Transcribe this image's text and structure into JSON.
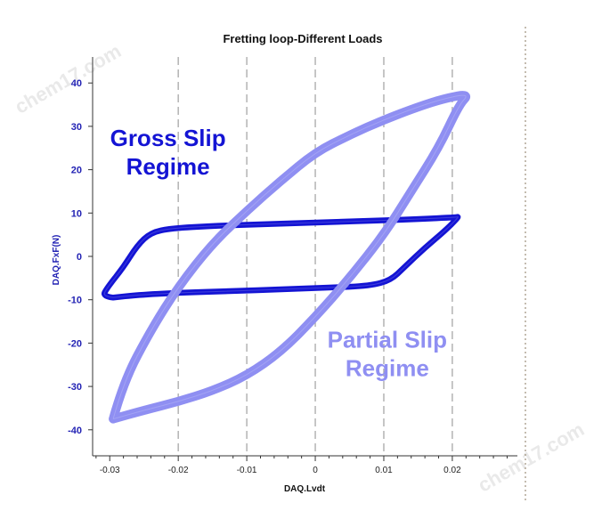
{
  "chart_data": {
    "type": "line",
    "title": "Fretting loop-Different Loads",
    "xlabel": "DAQ.Lvdt",
    "ylabel": "DAQ.FxF(N)",
    "xlim": [
      -0.0325,
      0.0295
    ],
    "ylim": [
      -46,
      46
    ],
    "x_ticks": [
      -0.03,
      -0.02,
      -0.01,
      0,
      0.01,
      0.02
    ],
    "x_tick_labels": [
      "-0.03",
      "-0.02",
      "-0.01",
      "0",
      "0.01",
      "0.02"
    ],
    "y_ticks": [
      -40,
      -30,
      -20,
      -10,
      0,
      10,
      20,
      30,
      40
    ],
    "y_tick_labels": [
      "-40",
      "-30",
      "-20",
      "-10",
      "0",
      "10",
      "20",
      "30",
      "40"
    ],
    "grid": "vertical dashed",
    "colors": {
      "gross": "#1414d4",
      "partial": "#8f8ff2"
    },
    "annotations": [
      {
        "lines": [
          "Gross Slip",
          "Regime"
        ],
        "series": "gross",
        "x": -0.0215,
        "y": 25.5
      },
      {
        "lines": [
          "Partial Slip",
          "Regime"
        ],
        "series": "partial",
        "x": 0.0105,
        "y": -21
      }
    ],
    "series": [
      {
        "series_key": "gross",
        "width": 6.5,
        "points": [
          [
            -0.0295,
            -9.5
          ],
          [
            -0.031,
            -9.2
          ],
          [
            -0.0305,
            -7.5
          ],
          [
            -0.028,
            -2.5
          ],
          [
            -0.026,
            2.5
          ],
          [
            -0.024,
            5.5
          ],
          [
            -0.021,
            6.5
          ],
          [
            -0.015,
            7.0
          ],
          [
            -0.008,
            7.4
          ],
          [
            0.0,
            7.8
          ],
          [
            0.008,
            8.2
          ],
          [
            0.015,
            8.6
          ],
          [
            0.0205,
            9.0
          ],
          [
            0.021,
            9.2
          ],
          [
            0.019,
            6.0
          ],
          [
            0.016,
            2.0
          ],
          [
            0.013,
            -2.5
          ],
          [
            0.011,
            -5.5
          ],
          [
            0.008,
            -6.8
          ],
          [
            0.002,
            -7.2
          ],
          [
            -0.005,
            -7.6
          ],
          [
            -0.012,
            -8.0
          ],
          [
            -0.02,
            -8.4
          ],
          [
            -0.026,
            -8.9
          ],
          [
            -0.0295,
            -9.5
          ]
        ]
      },
      {
        "series_key": "partial",
        "width": 10,
        "points": [
          [
            -0.0295,
            -37.5
          ],
          [
            -0.028,
            -29
          ],
          [
            -0.024,
            -17
          ],
          [
            -0.02,
            -7
          ],
          [
            -0.015,
            3
          ],
          [
            -0.01,
            10.5
          ],
          [
            -0.005,
            17.5
          ],
          [
            0.0,
            24
          ],
          [
            0.005,
            28
          ],
          [
            0.01,
            31.5
          ],
          [
            0.015,
            34.5
          ],
          [
            0.019,
            36.5
          ],
          [
            0.0225,
            37.5
          ],
          [
            0.021,
            35
          ],
          [
            0.018,
            25
          ],
          [
            0.014,
            15
          ],
          [
            0.01,
            5
          ],
          [
            0.005,
            -5
          ],
          [
            0.0,
            -14
          ],
          [
            -0.005,
            -22
          ],
          [
            -0.01,
            -27.5
          ],
          [
            -0.015,
            -31
          ],
          [
            -0.02,
            -33.5
          ],
          [
            -0.025,
            -35.5
          ],
          [
            -0.0295,
            -37.5
          ]
        ]
      }
    ]
  },
  "watermark": "chem17.com"
}
